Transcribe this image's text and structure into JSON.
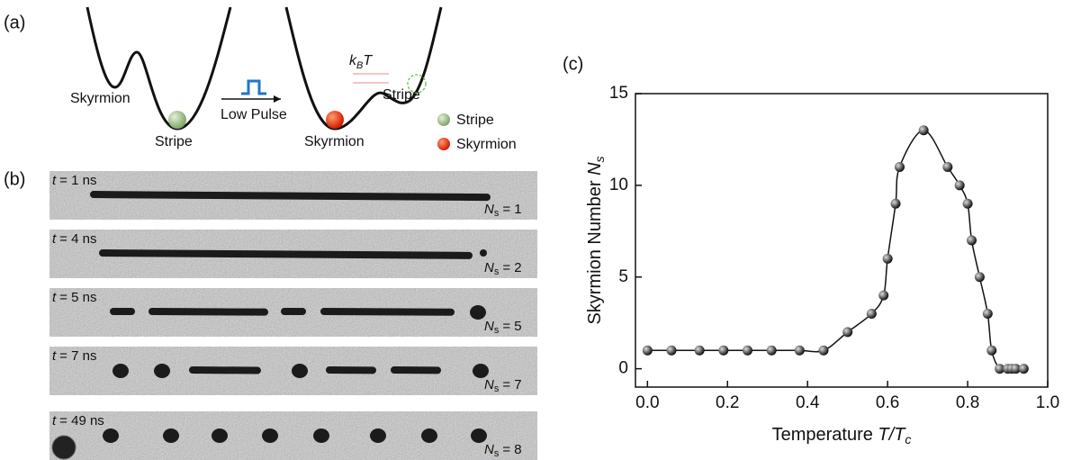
{
  "panel_a": {
    "label": "(a)",
    "left_skyrmion": "Skyrmion",
    "left_stripe": "Stripe",
    "pulse": "Low Pulse",
    "right_skyrmion": "Skyrmion",
    "right_stripe": "Stripe",
    "kb": "k",
    "kb_sub": "B",
    "kb_t": "T",
    "legend_stripe": "Stripe",
    "legend_skyrmion": "Skyrmion"
  },
  "panel_b": {
    "label": "(b)",
    "t_symbol": "t",
    "n_symbol": "N",
    "n_sub": "s",
    "frames": [
      {
        "time": "= 1 ns",
        "count": "= 1"
      },
      {
        "time": "= 4 ns",
        "count": "= 2"
      },
      {
        "time": "= 5 ns",
        "count": "= 5"
      },
      {
        "time": "= 7 ns",
        "count": "= 7"
      },
      {
        "time": "= 49 ns",
        "count": "= 8"
      }
    ]
  },
  "chart_data": {
    "type": "line",
    "panel_label": "(c)",
    "y_label": "Skyrmion Number ",
    "y_label_var": "N",
    "y_label_sub": "s",
    "x_label": "Temperature ",
    "x_label_var": "T/T",
    "x_label_sub": "c",
    "x": [
      0.0,
      0.06,
      0.13,
      0.19,
      0.25,
      0.31,
      0.38,
      0.44,
      0.5,
      0.56,
      0.59,
      0.6,
      0.62,
      0.63,
      0.69,
      0.75,
      0.78,
      0.8,
      0.81,
      0.83,
      0.85,
      0.86,
      0.88,
      0.9,
      0.91,
      0.92,
      0.94
    ],
    "values": [
      1,
      1,
      1,
      1,
      1,
      1,
      1,
      1,
      2,
      3,
      4,
      6,
      9,
      11,
      13,
      11,
      10,
      9,
      7,
      5,
      3,
      1,
      0,
      0,
      0,
      0,
      0
    ],
    "color": "#111111",
    "xlim": [
      -0.03,
      1.0
    ],
    "ylim": [
      -1,
      15
    ],
    "xticks": [
      {
        "value": 0,
        "label": "0.0"
      },
      0.2,
      0.4,
      0.6,
      0.8,
      {
        "value": 1,
        "label": "1.0"
      }
    ],
    "yticks": [
      0,
      5,
      10,
      15
    ]
  }
}
